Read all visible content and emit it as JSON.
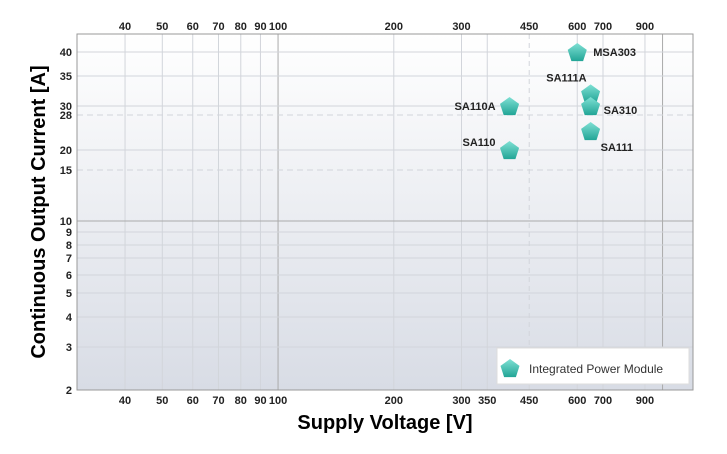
{
  "chart_data": {
    "type": "scatter",
    "xlabel": "Supply Voltage [V]",
    "ylabel": "Continuous Output Current [A]",
    "x_scale": "log",
    "y_scale": "log",
    "xlim": [
      30,
      1200
    ],
    "ylim": [
      2,
      45
    ],
    "grid": true,
    "x_ticks_bottom": [
      40,
      50,
      60,
      70,
      80,
      90,
      100,
      200,
      300,
      350,
      450,
      600,
      700,
      900
    ],
    "x_ticks_top": [
      40,
      50,
      60,
      70,
      80,
      90,
      100,
      200,
      300,
      450,
      600,
      700,
      900
    ],
    "y_ticks": [
      2,
      3,
      4,
      5,
      6,
      7,
      8,
      9,
      10,
      15,
      20,
      28,
      30,
      35,
      40
    ],
    "dashed_reference_x": [
      450
    ],
    "dashed_reference_y": [
      15,
      28
    ],
    "legend": {
      "placement": "bottom-right",
      "entries": [
        "Integrated Power Module"
      ]
    },
    "marker_color": "#3cc4b4",
    "series": [
      {
        "name": "Integrated Power Module",
        "points": [
          {
            "label": "MSA303",
            "x": 600,
            "y": 40
          },
          {
            "label": "SA111A",
            "x": 650,
            "y": 32
          },
          {
            "label": "SA310",
            "x": 650,
            "y": 30
          },
          {
            "label": "SA111",
            "x": 650,
            "y": 24
          },
          {
            "label": "SA110A",
            "x": 400,
            "y": 30
          },
          {
            "label": "SA110",
            "x": 400,
            "y": 20
          }
        ]
      }
    ]
  }
}
